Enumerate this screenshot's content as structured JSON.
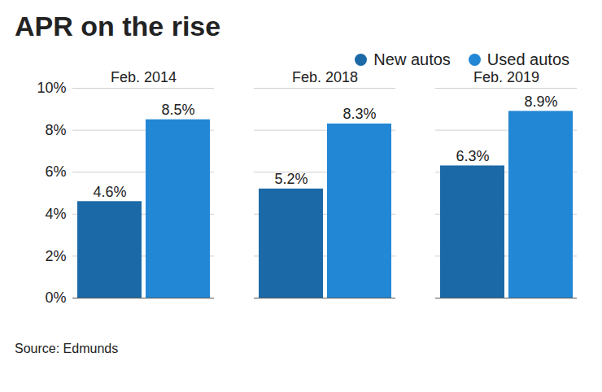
{
  "chart_data": {
    "type": "bar",
    "title": "APR on the rise",
    "categories": [
      "Feb. 2014",
      "Feb. 2018",
      "Feb. 2019"
    ],
    "series": [
      {
        "name": "New autos",
        "color": "#1b69a6",
        "values": [
          4.6,
          5.2,
          6.3
        ],
        "value_labels": [
          "4.6%",
          "5.2%",
          "6.3%"
        ]
      },
      {
        "name": "Used autos",
        "color": "#2287d4",
        "values": [
          8.5,
          8.3,
          8.9
        ],
        "value_labels": [
          "8.5%",
          "8.3%",
          "8.9%"
        ]
      }
    ],
    "ylim": [
      0,
      10
    ],
    "yticks": [
      {
        "value": 0,
        "label": "0%"
      },
      {
        "value": 2,
        "label": "2%"
      },
      {
        "value": 4,
        "label": "4%"
      },
      {
        "value": 6,
        "label": "6%"
      },
      {
        "value": 8,
        "label": "8%"
      },
      {
        "value": 10,
        "label": "10%"
      }
    ],
    "grid": true,
    "legend": "top-right",
    "data_labels": true,
    "caption": "Source: Edmunds"
  }
}
